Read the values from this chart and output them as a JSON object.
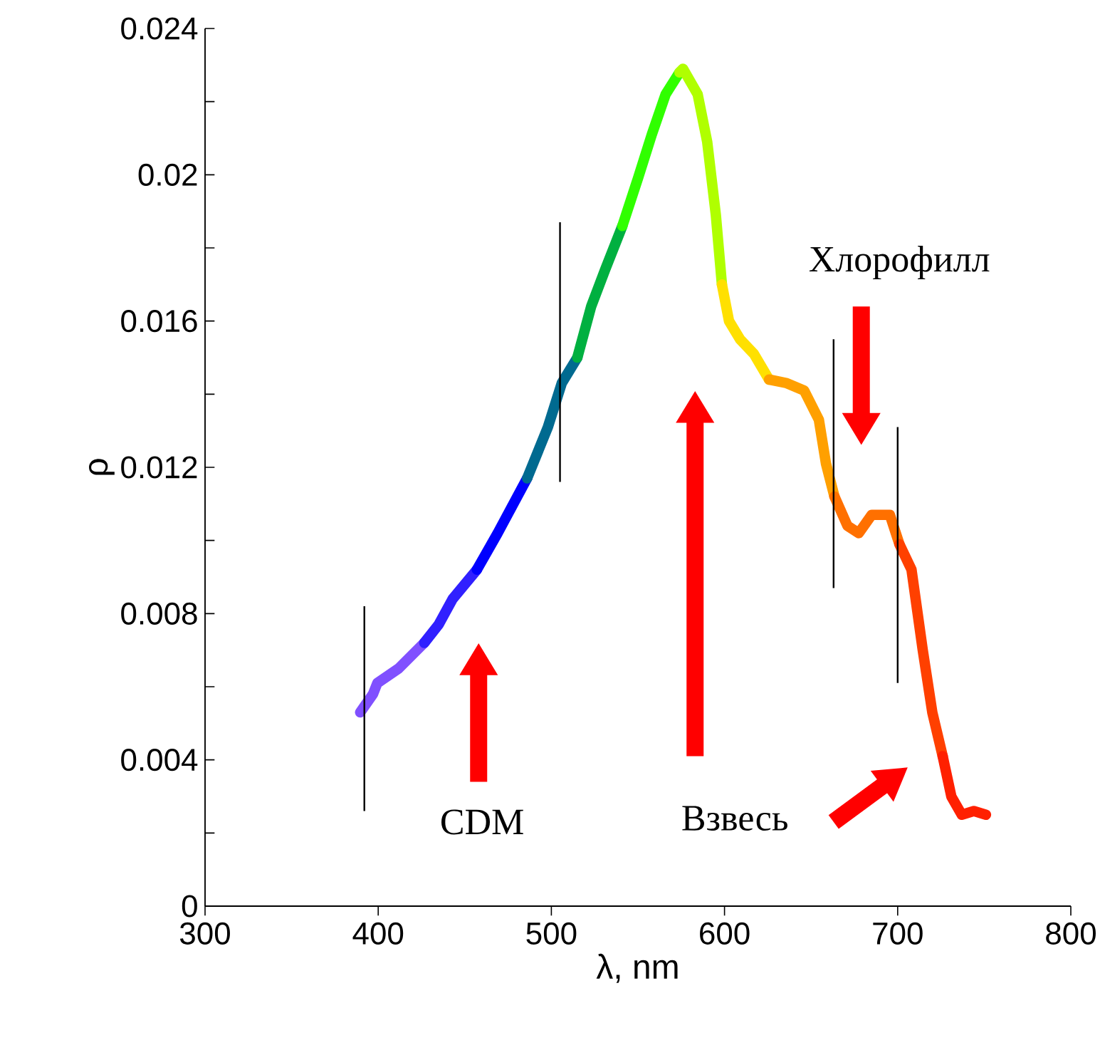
{
  "chart_data": {
    "type": "line",
    "xlabel": "λ, nm",
    "ylabel": "ρ",
    "xlim": [
      300,
      800
    ],
    "xticks": [
      300,
      400,
      500,
      600,
      700,
      800
    ],
    "ylim": [
      0,
      0.024
    ],
    "yticks": [
      {
        "value": 0,
        "label": "0"
      },
      {
        "value": 0.002,
        "label": null
      },
      {
        "value": 0.004,
        "label": "0.004"
      },
      {
        "value": 0.006,
        "label": null
      },
      {
        "value": 0.008,
        "label": "0.008"
      },
      {
        "value": 0.01,
        "label": null
      },
      {
        "value": 0.012,
        "label": "0.012"
      },
      {
        "value": 0.014,
        "label": null
      },
      {
        "value": 0.016,
        "label": "0.016"
      },
      {
        "value": 0.018,
        "label": null
      },
      {
        "value": 0.02,
        "label": "0.02"
      },
      {
        "value": 0.022,
        "label": null
      },
      {
        "value": 0.024,
        "label": "0.024"
      }
    ],
    "series": [
      {
        "color": "#8050ff",
        "x": [
          389.6,
          397,
          399.5,
          411.8,
          426.6
        ],
        "values": [
          0.0053,
          0.0058,
          0.0061,
          0.0065,
          0.0072
        ]
      },
      {
        "color": "#3020ff",
        "x": [
          426.6,
          434.9,
          443,
          457
        ],
        "values": [
          0.0072,
          0.0077,
          0.0084,
          0.0092
        ]
      },
      {
        "color": "#0000ff",
        "x": [
          457,
          469,
          486
        ],
        "values": [
          0.0092,
          0.0102,
          0.0117
        ]
      },
      {
        "color": "#006a90",
        "x": [
          486,
          498,
          506,
          515
        ],
        "values": [
          0.0117,
          0.0131,
          0.0143,
          0.015
        ]
      },
      {
        "color": "#00b040",
        "x": [
          515,
          523,
          531,
          541
        ],
        "values": [
          0.015,
          0.0164,
          0.0174,
          0.0186
        ]
      },
      {
        "color": "#30ff00",
        "x": [
          541,
          550,
          558,
          566,
          574
        ],
        "values": [
          0.0186,
          0.0199,
          0.0211,
          0.0222,
          0.0228
        ]
      },
      {
        "color": "#b0ff00",
        "x": [
          574,
          576,
          584.5,
          590,
          595,
          598.5
        ],
        "values": [
          0.0228,
          0.0229,
          0.0222,
          0.0209,
          0.0189,
          0.017
        ]
      },
      {
        "color": "#ffe000",
        "x": [
          598.5,
          602.6,
          609,
          617,
          625.7
        ],
        "values": [
          0.017,
          0.016,
          0.0155,
          0.0151,
          0.0144
        ]
      },
      {
        "color": "#ffa000",
        "x": [
          625.7,
          636,
          646,
          654.5,
          658.6,
          663.5
        ],
        "values": [
          0.0144,
          0.0143,
          0.0141,
          0.0133,
          0.0121,
          0.0112
        ]
      },
      {
        "color": "#ff7000",
        "x": [
          663.5,
          671,
          677.5,
          685,
          695.5,
          701
        ],
        "values": [
          0.0112,
          0.0104,
          0.0102,
          0.0107,
          0.0107,
          0.0099
        ]
      },
      {
        "color": "#ff4000",
        "x": [
          701,
          708,
          714.5,
          720,
          726
        ],
        "values": [
          0.0099,
          0.0092,
          0.007,
          0.0053,
          0.0041
        ]
      },
      {
        "color": "#ff2000",
        "x": [
          726,
          731,
          737,
          744,
          751
        ],
        "values": [
          0.0041,
          0.003,
          0.0025,
          0.0026,
          0.0025
        ]
      },
      {
        "type": "line",
        "color": "#000000",
        "x": [
          392,
          392
        ],
        "values": [
          0.0026,
          0.0082
        ]
      },
      {
        "type": "line",
        "color": "#000000",
        "x": [
          505,
          505
        ],
        "values": [
          0.0116,
          0.0187
        ]
      },
      {
        "type": "line",
        "color": "#000000",
        "x": [
          663,
          663
        ],
        "values": [
          0.0087,
          0.0155
        ]
      },
      {
        "type": "line",
        "color": "#000000",
        "x": [
          700,
          700
        ],
        "values": [
          0.0061,
          0.0131
        ]
      }
    ],
    "annotations": [
      "CDM",
      "Взвесь",
      "Хлорофилл"
    ]
  }
}
